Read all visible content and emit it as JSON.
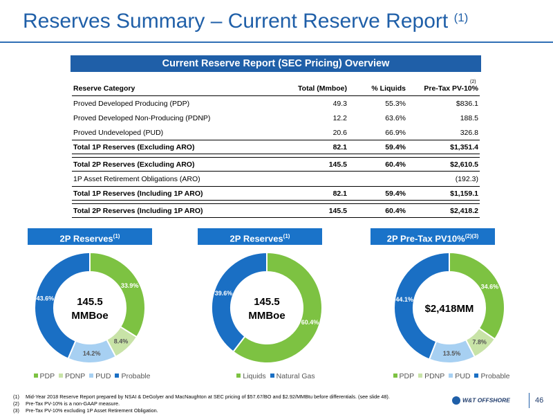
{
  "slide": {
    "title": "Reserves Summary – Current Reserve Report",
    "title_sup": "(1)",
    "page_number": "46",
    "logo_text": "W&T OFFSHORE"
  },
  "table": {
    "banner": "Current Reserve Report (SEC Pricing) Overview",
    "headers": [
      "Reserve Category",
      "Total (Mmboe)",
      "% Liquids",
      "Pre-Tax PV-10%"
    ],
    "header_sup": "(2)",
    "rows": [
      {
        "cells": [
          "Proved Developed Producing (PDP)",
          "49.3",
          "55.3%",
          "$836.1"
        ],
        "bold": false
      },
      {
        "cells": [
          "Proved Developed Non-Producing (PDNP)",
          "12.2",
          "63.6%",
          "188.5"
        ],
        "bold": false
      },
      {
        "cells": [
          "Proved Undeveloped (PUD)",
          "20.6",
          "66.9%",
          "326.8"
        ],
        "bold": false
      },
      {
        "cells": [
          "Total 1P Reserves (Excluding ARO)",
          "82.1",
          "59.4%",
          "$1,351.4"
        ],
        "bold": true
      },
      {
        "cells": [
          "Total 2P Reserves (Excluding ARO)",
          "145.5",
          "60.4%",
          "$2,610.5"
        ],
        "bold": true
      },
      {
        "cells": [
          "1P Asset Retirement Obligations (ARO)",
          "",
          "",
          "(192.3)"
        ],
        "bold": false
      },
      {
        "cells": [
          "Total 1P Reserves (Including 1P ARO)",
          "82.1",
          "59.4%",
          "$1,159.1"
        ],
        "bold": true
      },
      {
        "cells": [
          "Total 2P Reserves (Including 1P ARO)",
          "145.5",
          "60.4%",
          "$2,418.2"
        ],
        "bold": true
      }
    ]
  },
  "chart_data": [
    {
      "type": "pie",
      "title": "2P Reserves",
      "title_sup": "(1)",
      "center_label": [
        "145.5",
        "MMBoe"
      ],
      "categories": [
        "PDP",
        "PDNP",
        "PUD",
        "Probable"
      ],
      "values": [
        33.9,
        8.4,
        14.2,
        43.6
      ],
      "value_labels": [
        "33.9%",
        "8.4%",
        "14.2%",
        "43.6%"
      ],
      "colors": [
        "#7dc242",
        "#c8e3a7",
        "#a7d0f2",
        "#1a6fc4"
      ],
      "legend_position": "bottom"
    },
    {
      "type": "pie",
      "title": "2P Reserves",
      "title_sup": "(1)",
      "center_label": [
        "145.5",
        "MMBoe"
      ],
      "categories": [
        "Liquids",
        "Natural Gas"
      ],
      "values": [
        60.4,
        39.6
      ],
      "value_labels": [
        "60.4%",
        "39.6%"
      ],
      "colors": [
        "#7dc242",
        "#1a6fc4"
      ],
      "legend_position": "bottom"
    },
    {
      "type": "pie",
      "title": "2P Pre-Tax PV10%",
      "title_sup": "(2)(3)",
      "center_label": [
        "$2,418MM"
      ],
      "categories": [
        "PDP",
        "PDNP",
        "PUD",
        "Probable"
      ],
      "values": [
        34.6,
        7.8,
        13.5,
        44.1
      ],
      "value_labels": [
        "34.6%",
        "7.8%",
        "13.5%",
        "44.1%"
      ],
      "colors": [
        "#7dc242",
        "#c8e3a7",
        "#a7d0f2",
        "#1a6fc4"
      ],
      "legend_position": "bottom"
    }
  ],
  "footnotes": [
    {
      "key": "(1)",
      "text": "Mid-Year 2018 Reserve Report prepared by NSAI & DeGolyer and MacNaughton at SEC pricing of $57.67/BO and $2.92/MMBtu before differentials. (see slide 48)."
    },
    {
      "key": "(2)",
      "text": "Pre-Tax PV-10% is a non-GAAP measure."
    },
    {
      "key": "(3)",
      "text": "Pre-Tax PV-10% excluding 1P Asset Retirement Obligation."
    }
  ]
}
